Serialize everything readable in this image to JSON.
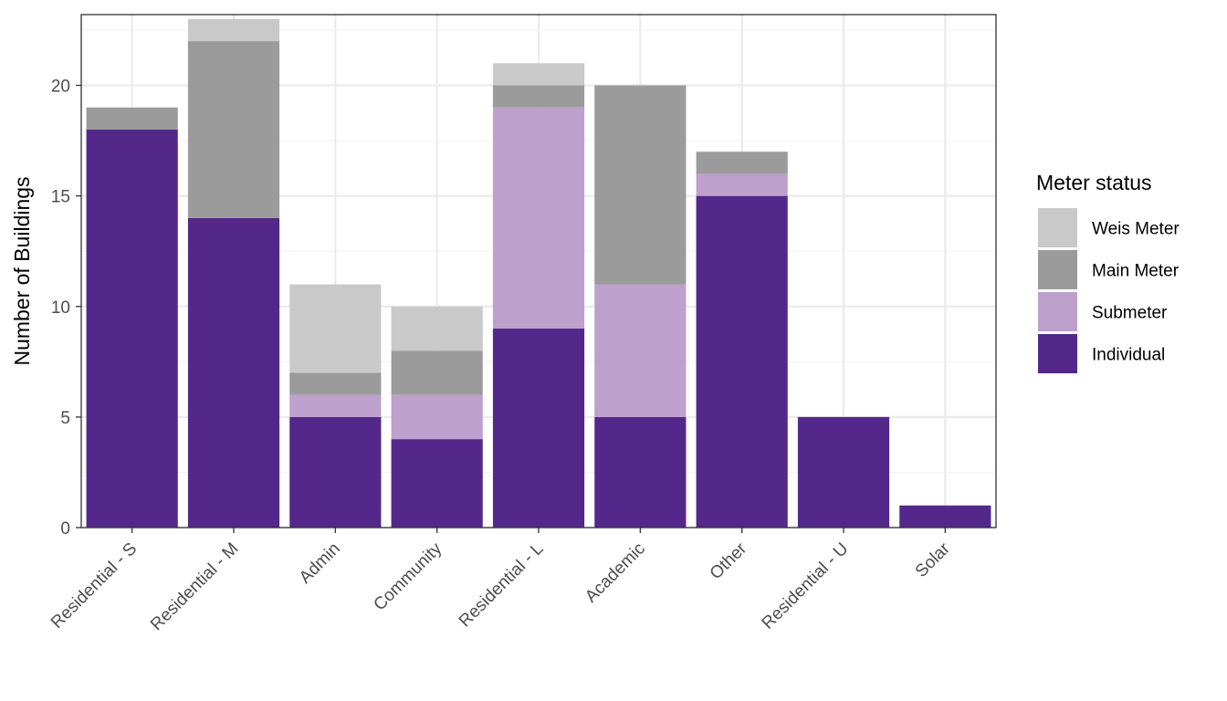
{
  "chart_data": {
    "type": "bar",
    "stacked": true,
    "title": "",
    "xlabel": "",
    "ylabel": "Number of Buildings",
    "ylim": [
      0,
      23.2
    ],
    "yticks": [
      0,
      5,
      10,
      15,
      20
    ],
    "grid": true,
    "legend": {
      "title": "Meter status",
      "position": "right"
    },
    "categories": [
      "Residential - S",
      "Residential - M",
      "Admin",
      "Community",
      "Residential - L",
      "Academic",
      "Other",
      "Residential - U",
      "Solar"
    ],
    "series": [
      {
        "name": "Individual",
        "color": "#54288a",
        "values": [
          18,
          14,
          5,
          4,
          9,
          5,
          15,
          5,
          1
        ]
      },
      {
        "name": "Submeter",
        "color": "#bda0cc",
        "values": [
          0,
          0,
          1,
          2,
          10,
          6,
          1,
          0,
          0
        ]
      },
      {
        "name": "Main Meter",
        "color": "#9b9b9b",
        "values": [
          1,
          8,
          1,
          2,
          1,
          9,
          1,
          0,
          0
        ]
      },
      {
        "name": "Weis Meter",
        "color": "#c9c9c9",
        "values": [
          0,
          1,
          4,
          2,
          1,
          0,
          0,
          0,
          0
        ]
      }
    ],
    "legend_order": [
      "Weis Meter",
      "Main Meter",
      "Submeter",
      "Individual"
    ]
  }
}
